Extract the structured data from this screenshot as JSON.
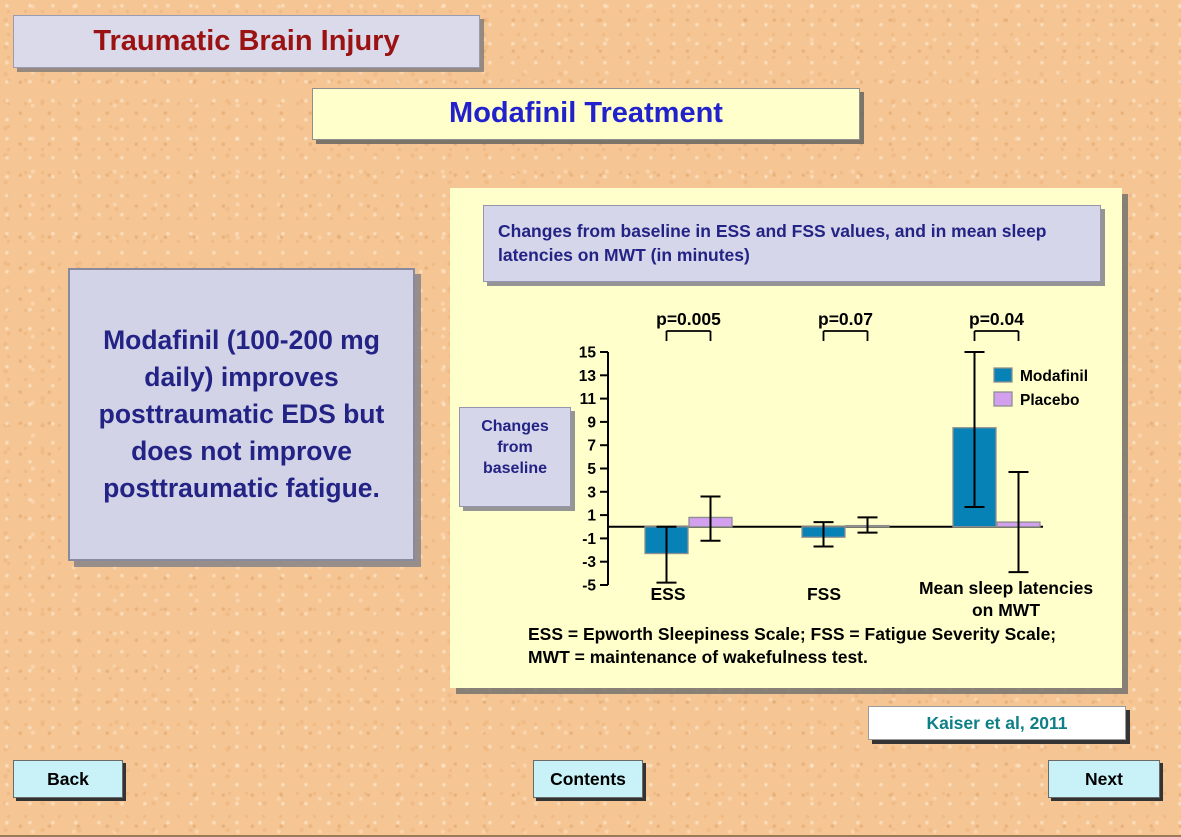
{
  "page": {
    "title": "Traumatic Brain Injury",
    "subtitle": "Modafinil Treatment"
  },
  "statement": "Modafinil (100-200 mg daily) improves posttraumatic EDS but does not improve posttraumatic fatigue.",
  "chart_panel": {
    "header": "Changes from baseline in ESS and FSS values, and in mean sleep latencies on MWT (in minutes)",
    "y_axis_caption": "Changes\nfrom\nbaseline",
    "footnote": "ESS = Epworth Sleepiness Scale; FSS = Fatigue Severity Scale;\nMWT = maintenance of wakefulness test."
  },
  "chart_data": {
    "type": "bar",
    "title": "Changes from baseline in ESS and FSS values, and in mean sleep latencies on MWT (in minutes)",
    "categories": [
      "ESS",
      "FSS",
      "Mean sleep latencies\non MWT"
    ],
    "series": [
      {
        "name": "Modafinil",
        "color": "#0682b6",
        "values": [
          -2.3,
          -0.9,
          8.5
        ],
        "error_lo": [
          -4.8,
          -1.7,
          1.7
        ],
        "error_hi": [
          0.0,
          0.4,
          15.0
        ]
      },
      {
        "name": "Placebo",
        "color": "#d2a0ee",
        "values": [
          0.8,
          0.1,
          0.4
        ],
        "error_lo": [
          -1.2,
          -0.5,
          -3.9
        ],
        "error_hi": [
          2.6,
          0.8,
          4.7
        ]
      }
    ],
    "p_values": [
      "p=0.005",
      "p=0.07",
      "p=0.04"
    ],
    "y_ticks": [
      15,
      13,
      11,
      9,
      7,
      5,
      3,
      1,
      -1,
      -3,
      -5
    ],
    "ylim": [
      -5,
      15
    ],
    "baseline": 0,
    "grid": false,
    "legend_position": "upper right",
    "ylabel": "Changes from baseline"
  },
  "citation": "Kaiser et al, 2011",
  "nav": {
    "back": "Back",
    "contents": "Contents",
    "next": "Next"
  }
}
